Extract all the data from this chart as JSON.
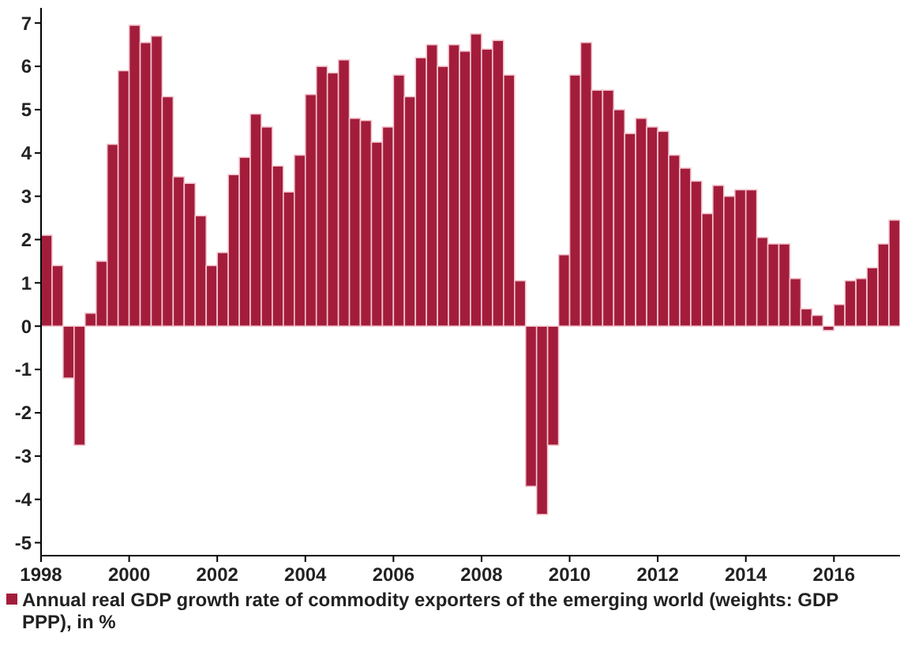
{
  "chart_data": {
    "type": "bar",
    "x": [
      1998.125,
      1998.375,
      1998.625,
      1998.875,
      1999.125,
      1999.375,
      1999.625,
      1999.875,
      2000.125,
      2000.375,
      2000.625,
      2000.875,
      2001.125,
      2001.375,
      2001.625,
      2001.875,
      2002.125,
      2002.375,
      2002.625,
      2002.875,
      2003.125,
      2003.375,
      2003.625,
      2003.875,
      2004.125,
      2004.375,
      2004.625,
      2004.875,
      2005.125,
      2005.375,
      2005.625,
      2005.875,
      2006.125,
      2006.375,
      2006.625,
      2006.875,
      2007.125,
      2007.375,
      2007.625,
      2007.875,
      2008.125,
      2008.375,
      2008.625,
      2008.875,
      2009.125,
      2009.375,
      2009.625,
      2009.875,
      2010.125,
      2010.375,
      2010.625,
      2010.875,
      2011.125,
      2011.375,
      2011.625,
      2011.875,
      2012.125,
      2012.375,
      2012.625,
      2012.875,
      2013.125,
      2013.375,
      2013.625,
      2013.875,
      2014.125,
      2014.375,
      2014.625,
      2014.875,
      2015.125,
      2015.375,
      2015.625,
      2015.875,
      2016.125,
      2016.375,
      2016.625,
      2016.875,
      2017.125,
      2017.375
    ],
    "series": [
      {
        "name": "Annual real GDP growth rate of commodity exporters of the emerging world (weights: GDP PPP), in %",
        "color": "#a31d3b",
        "values": [
          2.1,
          1.4,
          -1.2,
          -2.75,
          0.3,
          1.5,
          4.2,
          5.9,
          6.95,
          6.55,
          6.7,
          5.3,
          3.45,
          3.3,
          2.55,
          1.4,
          1.7,
          3.5,
          3.9,
          4.9,
          4.6,
          3.7,
          3.1,
          3.95,
          5.35,
          6.0,
          5.85,
          6.15,
          4.8,
          4.75,
          4.25,
          4.6,
          5.8,
          5.3,
          6.2,
          6.5,
          6.0,
          6.5,
          6.35,
          6.75,
          6.4,
          6.6,
          5.8,
          1.05,
          -3.7,
          -4.35,
          -2.75,
          1.65,
          5.8,
          6.55,
          5.45,
          5.45,
          5.0,
          4.45,
          4.8,
          4.6,
          4.5,
          3.95,
          3.65,
          3.35,
          2.6,
          3.25,
          3.0,
          3.15,
          3.15,
          2.05,
          1.9,
          1.9,
          1.1,
          0.4,
          0.25,
          -0.1,
          0.5,
          1.05,
          1.1,
          1.35,
          1.9,
          2.45
        ]
      }
    ],
    "xlim": [
      1998,
      2017.5
    ],
    "xticks": [
      1998,
      2000,
      2002,
      2004,
      2006,
      2008,
      2010,
      2012,
      2014,
      2016
    ],
    "ylim": [
      -5.3,
      7.35
    ],
    "yticks": [
      -5,
      -4,
      -3,
      -2,
      -1,
      0,
      1,
      2,
      3,
      4,
      5,
      6,
      7
    ],
    "grid": false,
    "legend": "bottom left"
  }
}
